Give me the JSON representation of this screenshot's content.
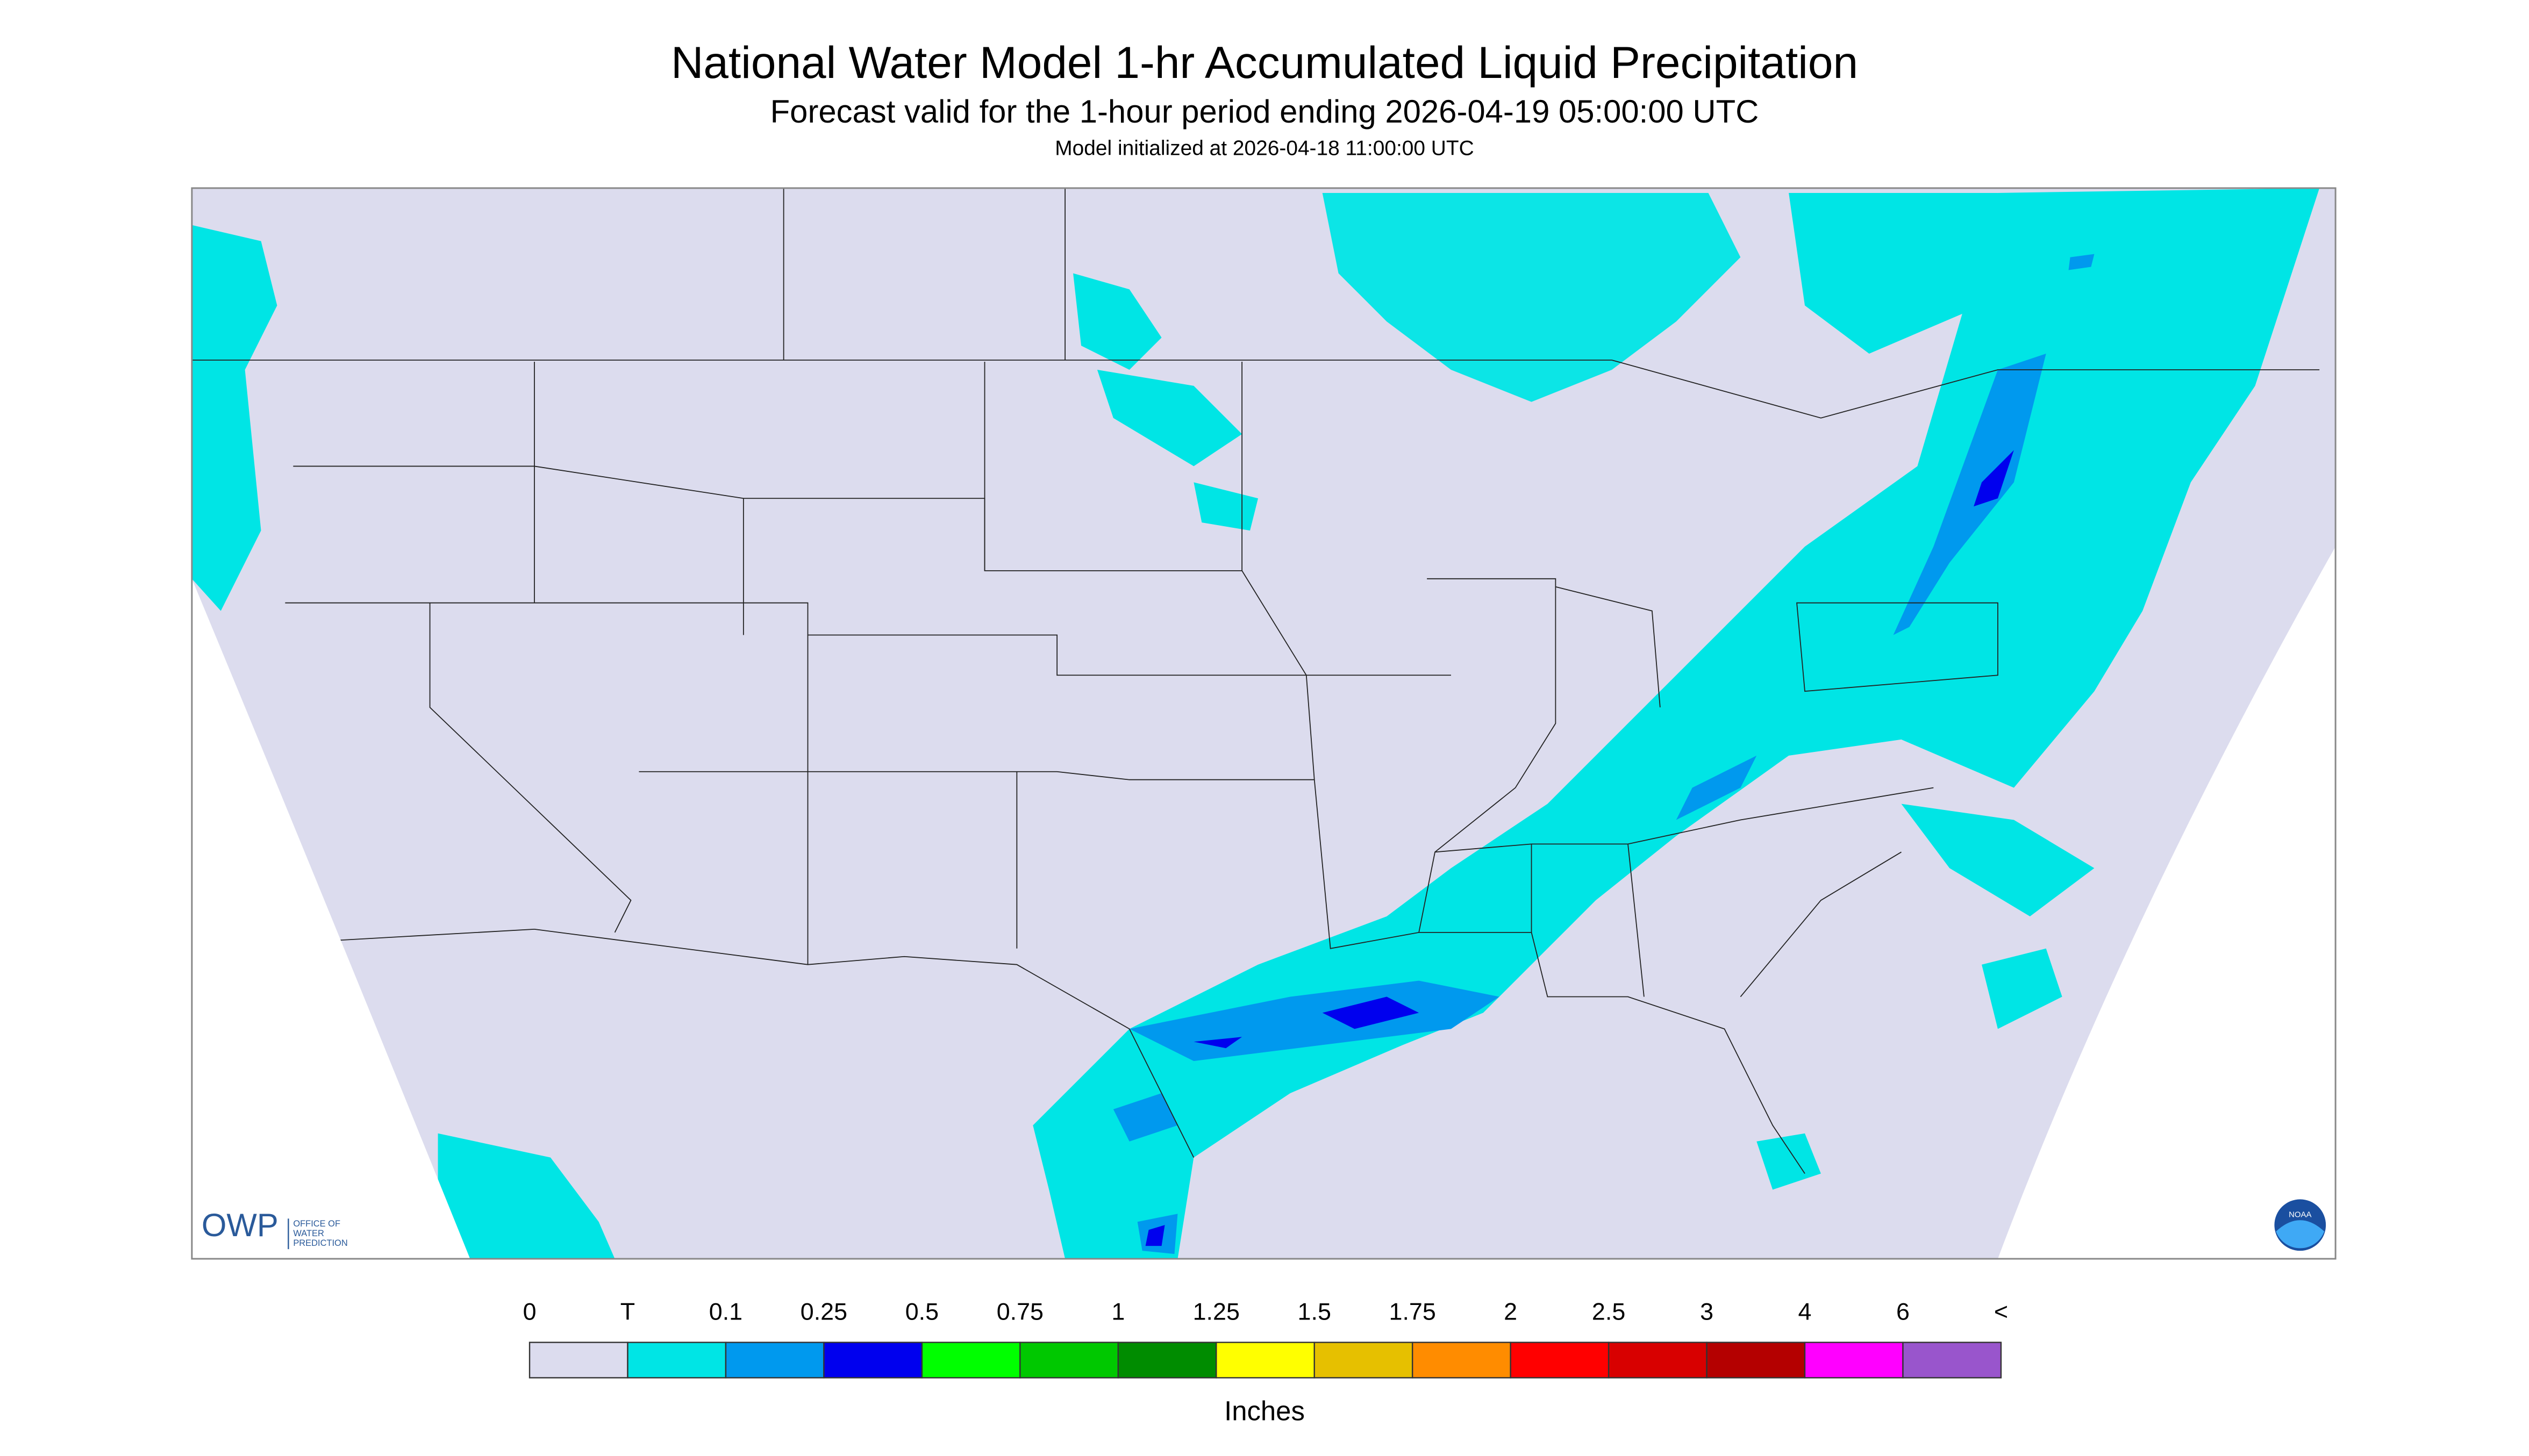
{
  "header": {
    "title": "National Water Model 1-hr Accumulated Liquid Precipitation",
    "subtitle": "Forecast valid for the 1-hour period ending 2026-04-19 05:00:00 UTC",
    "init": "Model initialized at 2026-04-18 11:00:00 UTC"
  },
  "legend": {
    "labels": [
      "0",
      "T",
      "0.1",
      "0.25",
      "0.5",
      "0.75",
      "1",
      "1.25",
      "1.5",
      "1.75",
      "2",
      "2.5",
      "3",
      "4",
      "6",
      "<"
    ],
    "colors": [
      "#dcdcee",
      "#00e5e5",
      "#0099ee",
      "#0000ee",
      "#00ff00",
      "#00c800",
      "#008c00",
      "#ffff00",
      "#e6c000",
      "#ff8c00",
      "#ff0000",
      "#d80000",
      "#b40000",
      "#ff00ff",
      "#9955cc"
    ],
    "unit": "Inches"
  },
  "logo": {
    "abbr": "OWP",
    "lines": [
      "OFFICE OF",
      "WATER",
      "PREDICTION"
    ],
    "noaa": "NOAA"
  }
}
